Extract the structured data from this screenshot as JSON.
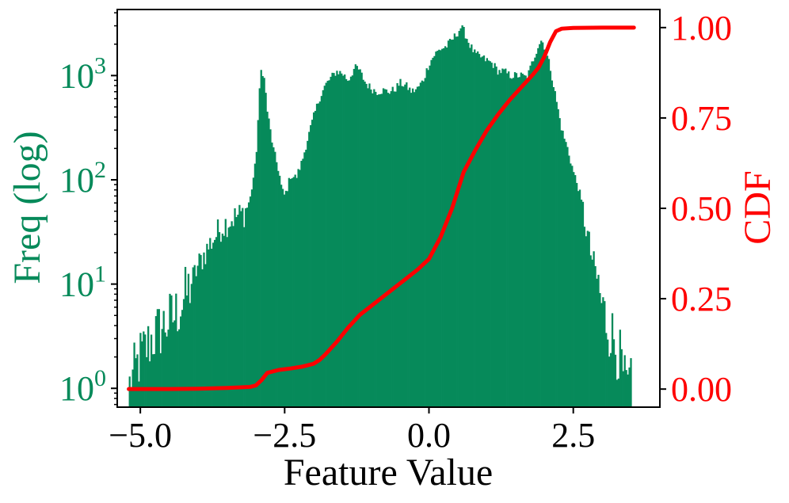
{
  "chart_data": {
    "type": "histogram-with-cdf",
    "xlabel": "Feature Value",
    "ylabel_left": "Freq (log)",
    "ylabel_right": "CDF",
    "xlim": [
      -5.4,
      4.0
    ],
    "x_ticks": [
      -5.0,
      -2.5,
      0.0,
      2.5
    ],
    "x_tick_labels": [
      "−5.0",
      "−2.5",
      "0.0",
      "2.5"
    ],
    "left_axis": {
      "scale": "log",
      "ylim": [
        0.66,
        4300
      ],
      "ticks": [
        1,
        10,
        100,
        1000
      ],
      "tick_bases": [
        "10",
        "10",
        "10",
        "10"
      ],
      "tick_exponents": [
        "0",
        "1",
        "2",
        "3"
      ]
    },
    "right_axis": {
      "scale": "linear",
      "ylim": [
        -0.05,
        1.05
      ],
      "ticks": [
        0.0,
        0.25,
        0.5,
        0.75,
        1.0
      ],
      "tick_labels": [
        "0.00",
        "0.25",
        "0.50",
        "0.75",
        "1.00"
      ]
    },
    "histogram": {
      "name": "Freq (log)",
      "color": "#068a5a",
      "bin_start": -5.2,
      "bin_width": 0.0268,
      "envelope": [
        [
          -5.2,
          1
        ],
        [
          -5.0,
          2
        ],
        [
          -4.8,
          3
        ],
        [
          -4.6,
          4
        ],
        [
          -4.4,
          5
        ],
        [
          -4.2,
          8
        ],
        [
          -4.0,
          15
        ],
        [
          -3.8,
          24
        ],
        [
          -3.6,
          35
        ],
        [
          -3.4,
          43
        ],
        [
          -3.2,
          48
        ],
        [
          -3.1,
          65
        ],
        [
          -3.0,
          150
        ],
        [
          -2.95,
          500
        ],
        [
          -2.92,
          1000
        ],
        [
          -2.9,
          1200
        ],
        [
          -2.85,
          900
        ],
        [
          -2.8,
          450
        ],
        [
          -2.7,
          200
        ],
        [
          -2.6,
          120
        ],
        [
          -2.55,
          80
        ],
        [
          -2.5,
          70
        ],
        [
          -2.45,
          85
        ],
        [
          -2.4,
          110
        ],
        [
          -2.3,
          105
        ],
        [
          -2.2,
          150
        ],
        [
          -2.1,
          250
        ],
        [
          -2.0,
          400
        ],
        [
          -1.9,
          600
        ],
        [
          -1.8,
          800
        ],
        [
          -1.7,
          950
        ],
        [
          -1.6,
          1100
        ],
        [
          -1.5,
          1050
        ],
        [
          -1.4,
          900
        ],
        [
          -1.3,
          1150
        ],
        [
          -1.25,
          1200
        ],
        [
          -1.2,
          1100
        ],
        [
          -1.1,
          850
        ],
        [
          -1.0,
          750
        ],
        [
          -0.9,
          700
        ],
        [
          -0.8,
          720
        ],
        [
          -0.7,
          700
        ],
        [
          -0.6,
          730
        ],
        [
          -0.5,
          850
        ],
        [
          -0.4,
          800
        ],
        [
          -0.3,
          700
        ],
        [
          -0.2,
          750
        ],
        [
          -0.1,
          900
        ],
        [
          0.0,
          1300
        ],
        [
          0.1,
          1600
        ],
        [
          0.2,
          1800
        ],
        [
          0.3,
          1900
        ],
        [
          0.4,
          2200
        ],
        [
          0.5,
          2600
        ],
        [
          0.55,
          2900
        ],
        [
          0.6,
          2700
        ],
        [
          0.7,
          2000
        ],
        [
          0.8,
          1600
        ],
        [
          0.9,
          1500
        ],
        [
          1.0,
          1400
        ],
        [
          1.1,
          1300
        ],
        [
          1.2,
          1100
        ],
        [
          1.3,
          1100
        ],
        [
          1.4,
          1000
        ],
        [
          1.5,
          1000
        ],
        [
          1.6,
          1000
        ],
        [
          1.7,
          950
        ],
        [
          1.8,
          1400
        ],
        [
          1.9,
          2000
        ],
        [
          1.95,
          2200
        ],
        [
          2.0,
          1900
        ],
        [
          2.1,
          1200
        ],
        [
          2.2,
          600
        ],
        [
          2.3,
          300
        ],
        [
          2.4,
          200
        ],
        [
          2.5,
          120
        ],
        [
          2.6,
          80
        ],
        [
          2.7,
          40
        ],
        [
          2.8,
          20
        ],
        [
          2.9,
          12
        ],
        [
          3.0,
          6
        ],
        [
          3.1,
          4
        ],
        [
          3.2,
          3
        ],
        [
          3.3,
          2
        ],
        [
          3.4,
          1
        ],
        [
          3.5,
          1
        ]
      ]
    },
    "cdf": {
      "name": "CDF",
      "color": "#ff0000",
      "points": [
        [
          -5.2,
          0.0
        ],
        [
          -4.5,
          0.0
        ],
        [
          -4.0,
          0.001
        ],
        [
          -3.5,
          0.003
        ],
        [
          -3.1,
          0.006
        ],
        [
          -3.0,
          0.01
        ],
        [
          -2.9,
          0.025
        ],
        [
          -2.8,
          0.045
        ],
        [
          -2.6,
          0.053
        ],
        [
          -2.4,
          0.057
        ],
        [
          -2.2,
          0.062
        ],
        [
          -2.0,
          0.07
        ],
        [
          -1.9,
          0.08
        ],
        [
          -1.8,
          0.095
        ],
        [
          -1.6,
          0.13
        ],
        [
          -1.4,
          0.17
        ],
        [
          -1.2,
          0.205
        ],
        [
          -1.0,
          0.23
        ],
        [
          -0.8,
          0.255
        ],
        [
          -0.6,
          0.28
        ],
        [
          -0.4,
          0.305
        ],
        [
          -0.2,
          0.33
        ],
        [
          0.0,
          0.36
        ],
        [
          0.2,
          0.42
        ],
        [
          0.4,
          0.5
        ],
        [
          0.6,
          0.6
        ],
        [
          0.8,
          0.66
        ],
        [
          1.0,
          0.715
        ],
        [
          1.2,
          0.76
        ],
        [
          1.4,
          0.8
        ],
        [
          1.6,
          0.835
        ],
        [
          1.8,
          0.87
        ],
        [
          1.9,
          0.89
        ],
        [
          2.0,
          0.92
        ],
        [
          2.1,
          0.96
        ],
        [
          2.2,
          0.99
        ],
        [
          2.3,
          0.997
        ],
        [
          2.5,
          0.999
        ],
        [
          3.0,
          1.0
        ],
        [
          3.55,
          1.0
        ]
      ]
    },
    "colors": {
      "left_axis": "#068a5a",
      "right_axis": "#ff0000",
      "frame": "#000000"
    },
    "grid": false
  }
}
